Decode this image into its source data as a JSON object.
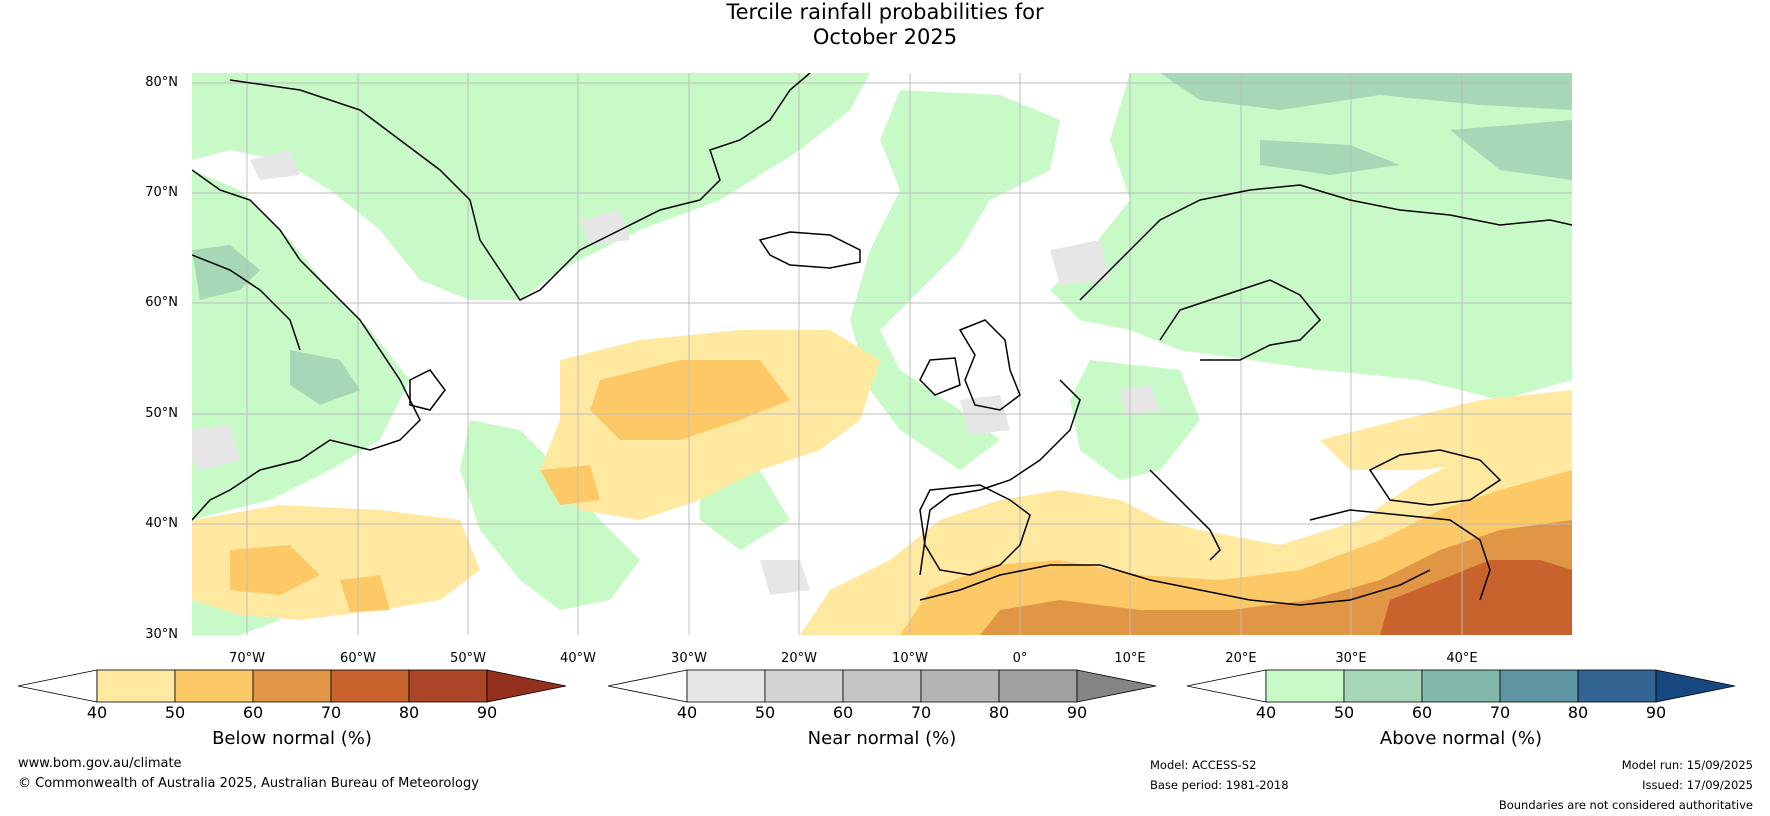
{
  "title": {
    "line1": "Tercile rainfall probabilities for",
    "line2": "October 2025"
  },
  "map": {
    "lat_labels": [
      "80°N",
      "70°N",
      "60°N",
      "50°N",
      "40°N",
      "30°N"
    ],
    "lon_labels": [
      "70°W",
      "60°W",
      "50°W",
      "40°W",
      "30°W",
      "20°W",
      "10°W",
      "0°",
      "10°E",
      "20°E",
      "30°E",
      "40°E"
    ],
    "ocean_color": "#ffffff",
    "gridline_color": "#bdbdbd"
  },
  "legends": [
    {
      "label": "Below normal (%)",
      "ticks": [
        "40",
        "50",
        "60",
        "70",
        "80",
        "90"
      ],
      "colors": [
        "#ffffff",
        "#ffe9a0",
        "#fdc967",
        "#e09645",
        "#c9632e",
        "#ac4527",
        "#93311e"
      ]
    },
    {
      "label": "Near normal (%)",
      "ticks": [
        "40",
        "50",
        "60",
        "70",
        "80",
        "90"
      ],
      "colors": [
        "#ffffff",
        "#e6e6e6",
        "#d4d4d4",
        "#c4c4c4",
        "#b4b4b4",
        "#a0a0a0",
        "#848484"
      ]
    },
    {
      "label": "Above normal (%)",
      "ticks": [
        "40",
        "50",
        "60",
        "70",
        "80",
        "90"
      ],
      "colors": [
        "#ffffff",
        "#c8fac8",
        "#a6d8b8",
        "#84b8ac",
        "#5f94a2",
        "#336593",
        "#17487f"
      ]
    }
  ],
  "footer": {
    "website": "www.bom.gov.au/climate",
    "copyright": "© Commonwealth of Australia 2025, Australian Bureau of Meteorology",
    "model": "Model: ACCESS-S2",
    "base_period": "Base period: 1981-2018",
    "model_run": "Model run: 15/09/2025",
    "issued": "Issued: 17/09/2025",
    "disclaimer": "Boundaries are not considered authoritative"
  }
}
